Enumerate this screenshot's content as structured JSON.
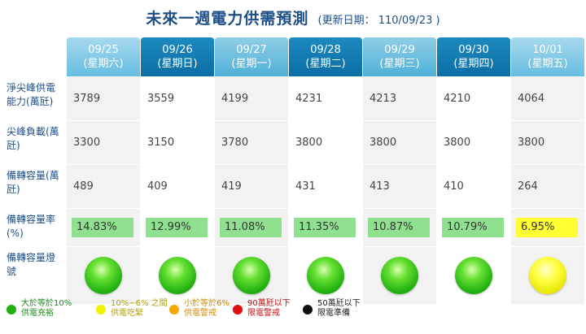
{
  "title": "未來一週電力供需預測",
  "update_label": "(更新日期： 110/09/23 )",
  "columns": [
    {
      "date": "09/25",
      "weekday": "(星期六)",
      "supply": "3789",
      "peak_load": "3300",
      "reserve": "489",
      "reserve_rate": "14.83%",
      "light": "green"
    },
    {
      "date": "09/26",
      "weekday": "(星期日)",
      "supply": "3559",
      "peak_load": "3150",
      "reserve": "409",
      "reserve_rate": "12.99%",
      "light": "green"
    },
    {
      "date": "09/27",
      "weekday": "(星期一)",
      "supply": "4199",
      "peak_load": "3780",
      "reserve": "419",
      "reserve_rate": "11.08%",
      "light": "green"
    },
    {
      "date": "09/28",
      "weekday": "(星期二)",
      "supply": "4231",
      "peak_load": "3800",
      "reserve": "431",
      "reserve_rate": "11.35%",
      "light": "green"
    },
    {
      "date": "09/29",
      "weekday": "(星期三)",
      "supply": "4213",
      "peak_load": "3800",
      "reserve": "413",
      "reserve_rate": "10.87%",
      "light": "green"
    },
    {
      "date": "09/30",
      "weekday": "(星期四)",
      "supply": "4210",
      "peak_load": "3800",
      "reserve": "410",
      "reserve_rate": "10.79%",
      "light": "green"
    },
    {
      "date": "10/01",
      "weekday": "(星期五)",
      "supply": "4064",
      "peak_load": "3800",
      "reserve": "264",
      "reserve_rate": "6.95%",
      "light": "yellow"
    }
  ],
  "row_labels": {
    "supply": "淨尖峰供電能力(萬瓩)",
    "peak_load": "尖峰負載(萬瓩)",
    "reserve": "備轉容量(萬瓩)",
    "reserve_rate": "備轉容量率(%)",
    "light": "備轉容量燈號"
  },
  "legend": [
    {
      "line1": "大於等於10%",
      "line2": "供電充裕",
      "color": "#22b010",
      "text_color": "#1a8a1a"
    },
    {
      "line1": "10%~6% 之間",
      "line2": "供電吃緊",
      "color": "#f2f200",
      "text_color": "#b3a000"
    },
    {
      "line1": "小於等於6%",
      "line2": "供電警戒",
      "color": "#f5a800",
      "text_color": "#d08800"
    },
    {
      "line1": "90萬瓩以下",
      "line2": "限電警戒",
      "color": "#e01010",
      "text_color": "#c01010"
    },
    {
      "line1": "50萬瓩以下",
      "line2": "限電準備",
      "color": "#111111",
      "text_color": "#222222"
    }
  ],
  "colors": {
    "header_light": "#4fb0d8",
    "header_dark": "#0c6da3",
    "rate_green": "#8fe08f",
    "rate_yellow": "#ffff33"
  }
}
